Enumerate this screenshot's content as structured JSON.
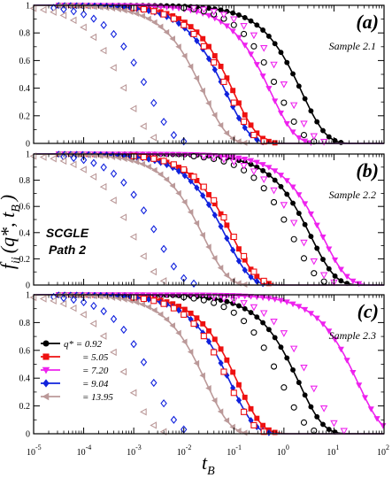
{
  "chart_data": {
    "type": "line",
    "xscale": "log",
    "xlim": [
      1e-05,
      100
    ],
    "ylim": [
      0,
      1
    ],
    "xlabel_base": "t",
    "xlabel_sub": "B",
    "ylabel_base": "f",
    "ylabel_sub": "ii",
    "ylabel_args": "(q*, t",
    "ylabel_args_sub": "B",
    "ylabel_close": ")",
    "x_ticks": [
      {
        "base": "10",
        "exp": "-5"
      },
      {
        "base": "10",
        "exp": "-4"
      },
      {
        "base": "10",
        "exp": "-3"
      },
      {
        "base": "10",
        "exp": "-2"
      },
      {
        "base": "10",
        "exp": "-1"
      },
      {
        "base": "10",
        "exp": "0"
      },
      {
        "base": "10",
        "exp": "1"
      },
      {
        "base": "10",
        "exp": "2"
      }
    ],
    "y_ticks": [
      "0",
      "0.2",
      "0.4",
      "0.6",
      "0.8",
      "1"
    ],
    "legend": {
      "panel": 2,
      "placement": "left",
      "entries": [
        {
          "prefix": "q* = ",
          "value": "0.92"
        },
        {
          "prefix": "= ",
          "value": "5.05"
        },
        {
          "prefix": "= ",
          "value": "7.20"
        },
        {
          "prefix": "= ",
          "value": "9.04"
        },
        {
          "prefix": "= ",
          "value": "13.95"
        }
      ]
    },
    "series_styles": [
      {
        "color": "#000000",
        "line_marker": "circle",
        "open_marker": "circle"
      },
      {
        "color": "#ee1111",
        "line_marker": "square",
        "open_marker": "square"
      },
      {
        "color": "#ee22ee",
        "line_marker": "triangle-down",
        "open_marker": "triangle-down"
      },
      {
        "color": "#1122dd",
        "line_marker": "diamond",
        "open_marker": "diamond"
      },
      {
        "color": "#bb9999",
        "line_marker": "triangle-left",
        "open_marker": "triangle-left"
      }
    ],
    "panels": [
      {
        "tag": "(a)",
        "sample": "Sample 2.1",
        "theory_tau": [
          2.3,
          0.1,
          0.55,
          0.07,
          0.025
        ],
        "sim_tau": [
          0.8,
          0.08,
          1.2,
          0.002,
          0.0007
        ]
      },
      {
        "tag": "(b)",
        "sample": "Sample 2.2",
        "note_line1": "SCGLE",
        "note_line2": "Path 2",
        "theory_tau": [
          3.5,
          0.095,
          6.0,
          0.07,
          0.025
        ],
        "sim_tau": [
          1.5,
          0.1,
          2.2,
          0.003,
          0.001
        ]
      },
      {
        "tag": "(c)",
        "sample": "Sample 2.3",
        "theory_tau": [
          2.0,
          0.12,
          30.0,
          0.085,
          0.028
        ],
        "sim_tau": [
          0.9,
          0.08,
          3.5,
          0.0025,
          0.0008
        ]
      }
    ]
  }
}
